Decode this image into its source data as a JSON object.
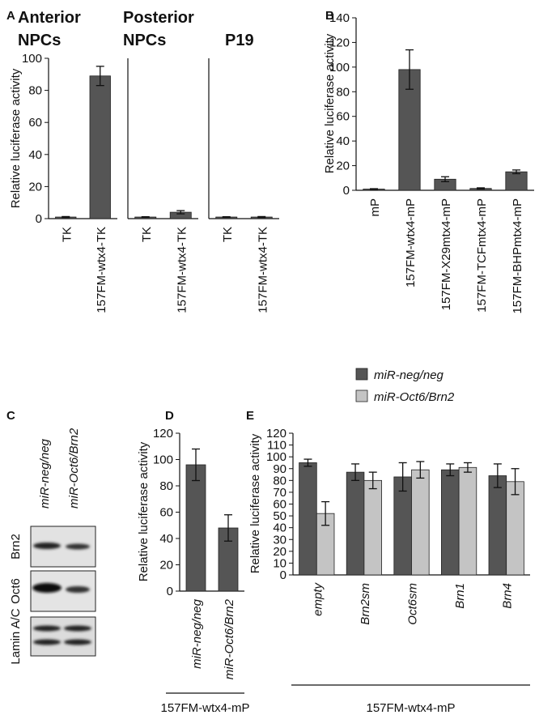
{
  "chart_data": [
    {
      "type": "bar",
      "panel": "A",
      "title": "Anterior NPCs",
      "ylabel": "Relative luciferase activity",
      "categories": [
        "TK",
        "157FM-wtx4-TK"
      ],
      "values": [
        1,
        89
      ],
      "errors": [
        0.3,
        6
      ],
      "color": "#555555",
      "ylim": [
        0,
        100
      ],
      "yticks": [
        0,
        20,
        40,
        60,
        80,
        100
      ]
    },
    {
      "type": "bar",
      "title": "Posterior NPCs",
      "categories": [
        "TK",
        "157FM-wtx4-TK"
      ],
      "values": [
        1,
        4
      ],
      "errors": [
        0.2,
        1
      ],
      "color": "#555555",
      "ylim": [
        0,
        100
      ]
    },
    {
      "type": "bar",
      "title": "P19",
      "categories": [
        "TK",
        "157FM-wtx4-TK"
      ],
      "values": [
        1,
        1
      ],
      "errors": [
        0.2,
        0.3
      ],
      "color": "#555555",
      "ylim": [
        0,
        100
      ]
    },
    {
      "type": "bar",
      "panel": "B",
      "ylabel": "Relative luciferase activity",
      "categories": [
        "mP",
        "157FM-wtx4-mP",
        "157FM-X29mtx4-mP",
        "157FM-TCFmtx4-mP",
        "157FM-BHPmtx4-mP"
      ],
      "values": [
        1,
        98,
        9,
        1.5,
        15
      ],
      "errors": [
        0.3,
        16,
        2,
        0.5,
        1.5
      ],
      "color": "#555555",
      "ylim": [
        0,
        140
      ],
      "yticks": [
        0,
        20,
        40,
        60,
        80,
        100,
        120,
        140
      ]
    },
    {
      "type": "bar",
      "panel": "D",
      "ylabel": "Relative luciferase activity",
      "xlabel": "157FM-wtx4-mP",
      "categories": [
        "miR-neg/neg",
        "miR-Oct6/Brn2"
      ],
      "values": [
        96,
        48
      ],
      "errors": [
        12,
        10
      ],
      "color": "#555555",
      "ylim": [
        0,
        120
      ],
      "yticks": [
        0,
        20,
        40,
        60,
        80,
        100,
        120
      ]
    },
    {
      "type": "grouped-bar",
      "panel": "E",
      "ylabel": "Relative luciferase activity",
      "xlabel": "157FM-wtx4-mP",
      "categories": [
        "empty",
        "Brn2sm",
        "Oct6sm",
        "Brn1",
        "Brn4"
      ],
      "series": [
        {
          "name": "miR-neg/neg",
          "color": "#555555",
          "values": [
            95,
            87,
            83,
            89,
            84
          ],
          "errors": [
            3,
            7,
            12,
            5,
            10
          ]
        },
        {
          "name": "miR-Oct6/Brn2",
          "color": "#c4c4c4",
          "values": [
            52,
            80,
            89,
            91,
            79
          ],
          "errors": [
            10,
            7,
            7,
            4,
            11
          ]
        }
      ],
      "ylim": [
        0,
        120
      ],
      "yticks": [
        0,
        10,
        20,
        30,
        40,
        50,
        60,
        70,
        80,
        90,
        100,
        110,
        120
      ]
    }
  ],
  "blot": {
    "panel": "C",
    "lanes": [
      "miR-neg/neg",
      "miR-Oct6/Brn2"
    ],
    "rows": [
      "Brn2",
      "Oct6",
      "Lamin A/C"
    ]
  }
}
